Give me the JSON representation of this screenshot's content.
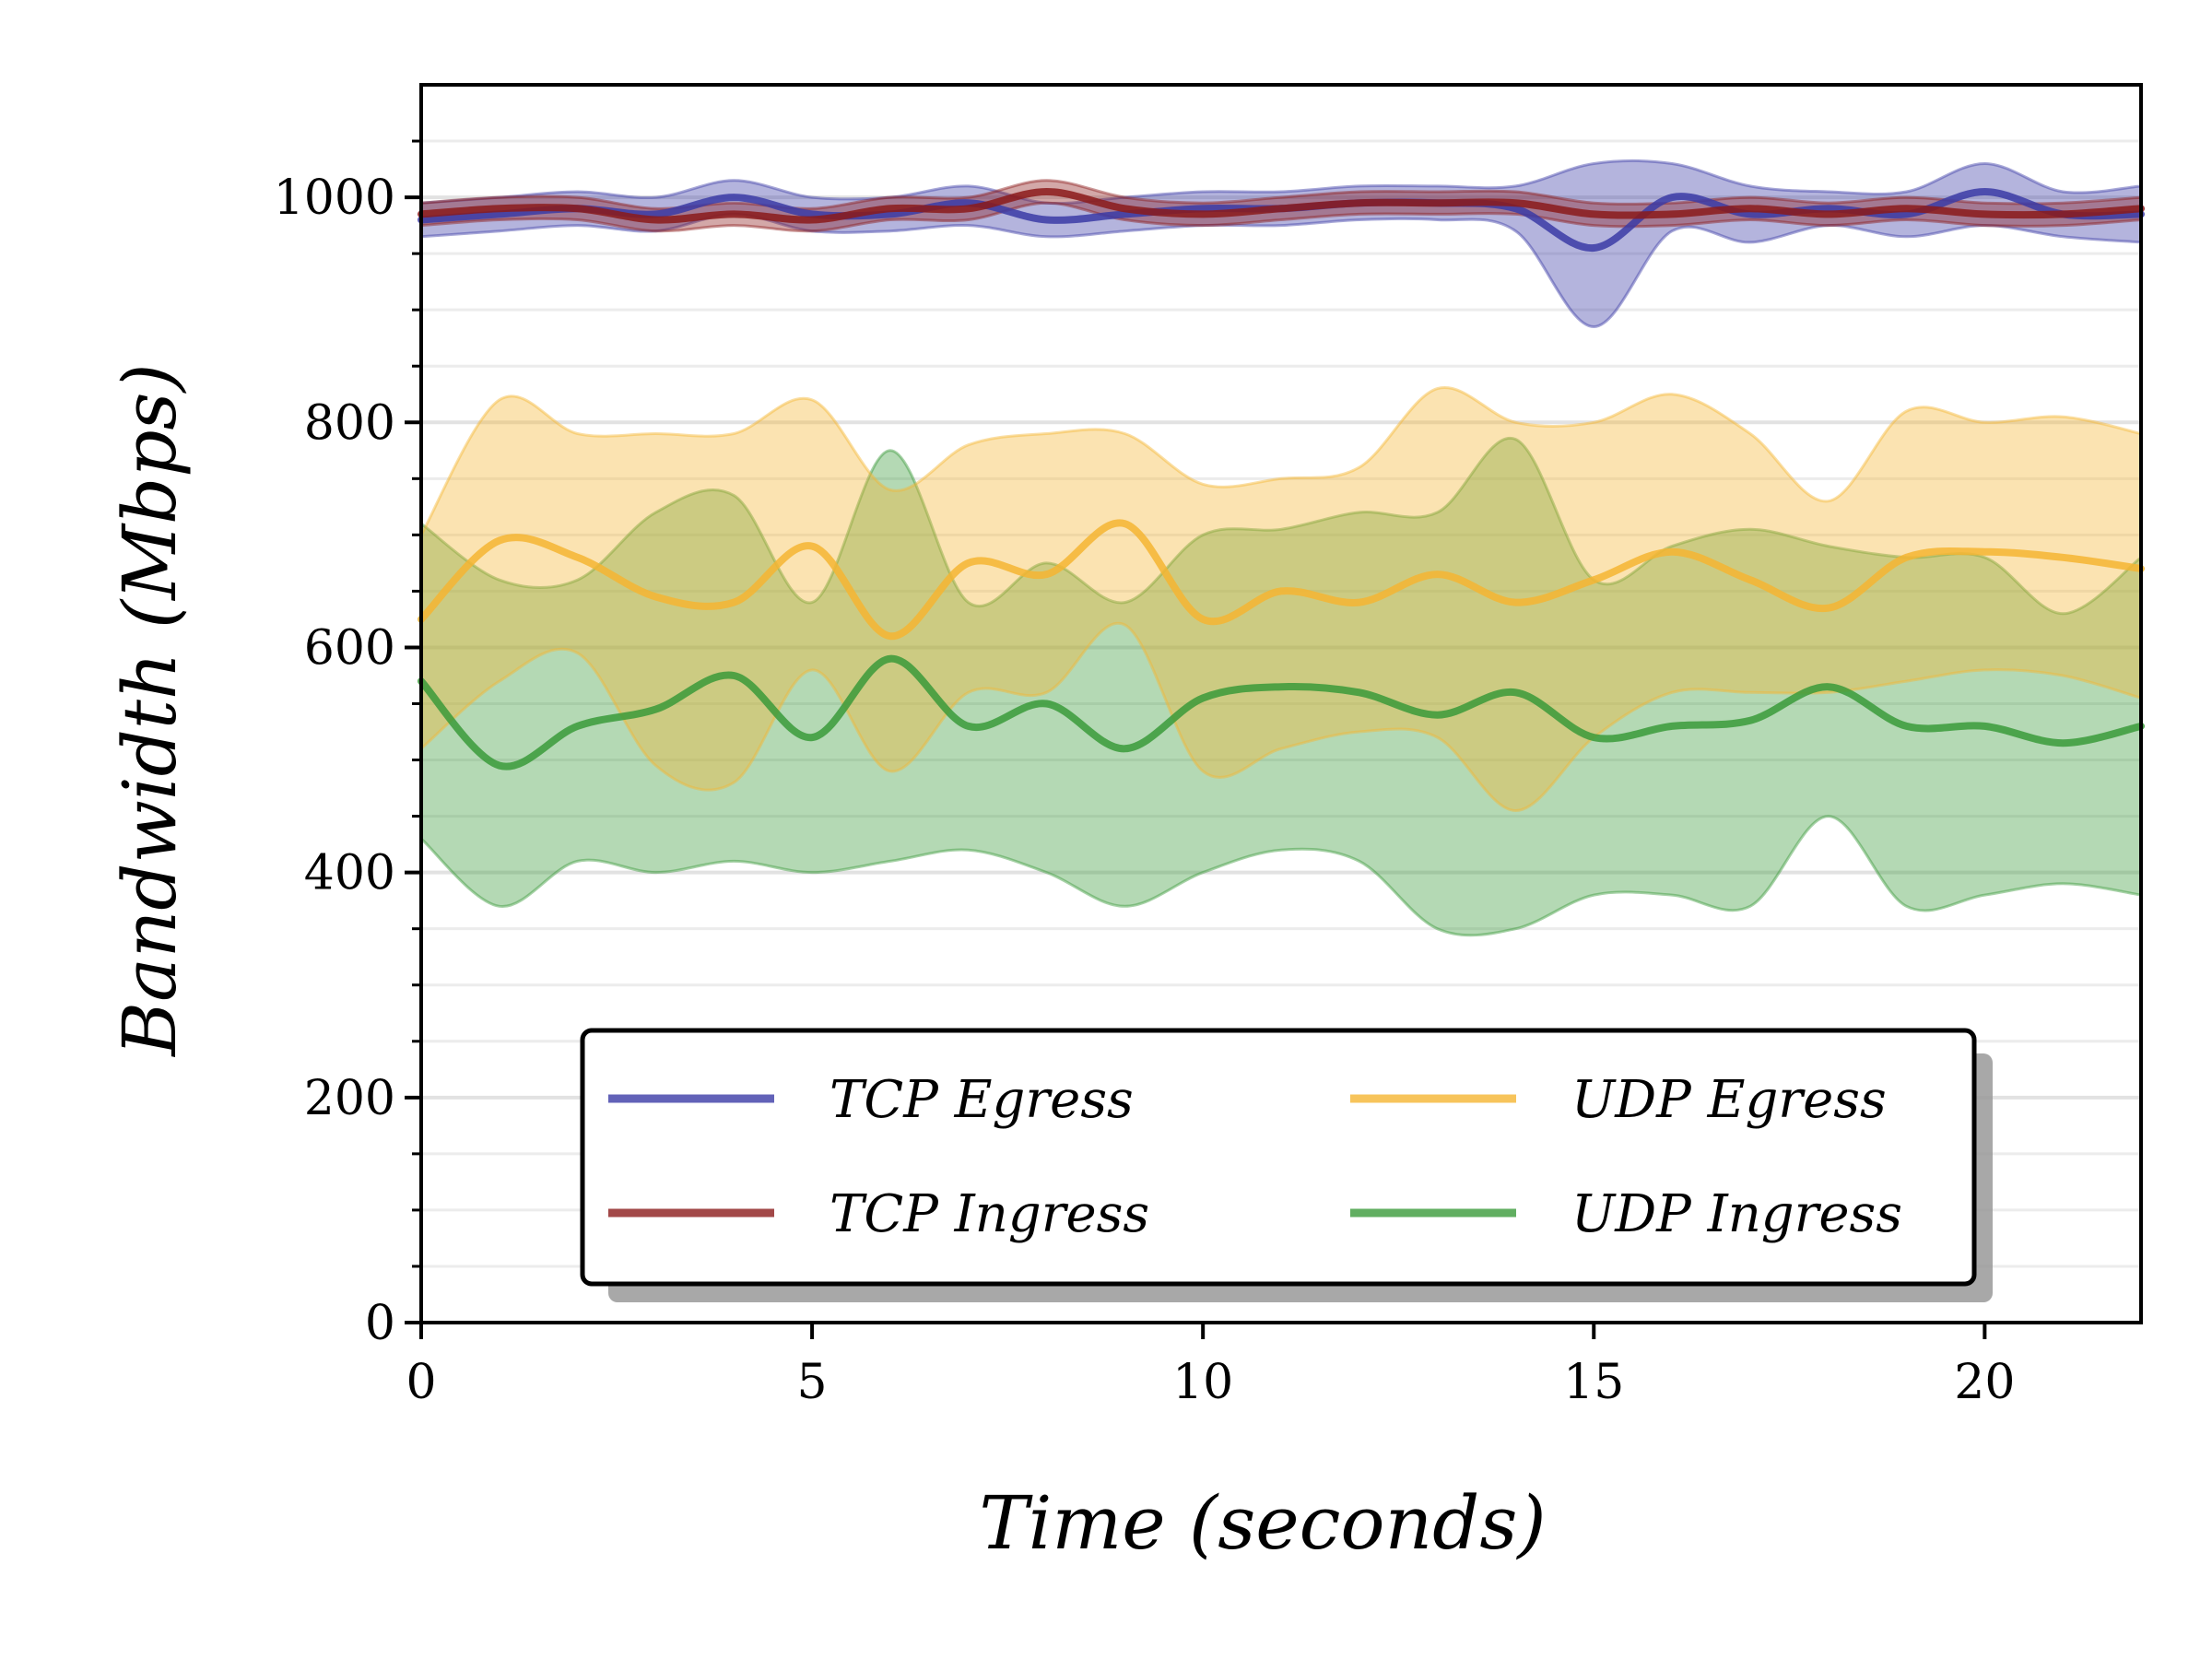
{
  "chart_data": {
    "type": "line",
    "title": "",
    "xlabel": "Time (seconds)",
    "ylabel": "Bandwidth (Mbps)",
    "xlim": [
      0,
      22
    ],
    "ylim": [
      0,
      1100
    ],
    "x_ticks": [
      0,
      5,
      10,
      15,
      20
    ],
    "x_tick_labels": [
      "0",
      "5",
      "10",
      "15",
      "20"
    ],
    "y_ticks": [
      0,
      200,
      400,
      600,
      800,
      1000
    ],
    "y_tick_labels": [
      "0",
      "200",
      "400",
      "600",
      "800",
      "1000"
    ],
    "y_minor_step": 50,
    "grid": "horizontal",
    "legend": {
      "placement": "bottom-center",
      "columns": 2,
      "order": [
        "TCP Egress",
        "TCP Ingress",
        "UDP Egress",
        "UDP Ingress"
      ]
    },
    "x": [
      0,
      1,
      2,
      3,
      4,
      5,
      6,
      7,
      8,
      9,
      10,
      11,
      12,
      13,
      14,
      15,
      16,
      17,
      18,
      19,
      20,
      21,
      22
    ],
    "series": [
      {
        "name": "TCP Egress",
        "color": "#3b3ba6",
        "mean": [
          980,
          985,
          990,
          985,
          1000,
          985,
          985,
          995,
          980,
          985,
          990,
          990,
          995,
          995,
          990,
          955,
          1000,
          985,
          990,
          985,
          1005,
          985,
          985
        ],
        "lower": [
          965,
          970,
          975,
          970,
          985,
          970,
          970,
          975,
          965,
          970,
          975,
          975,
          980,
          980,
          970,
          885,
          970,
          960,
          975,
          965,
          975,
          965,
          960
        ],
        "upper": [
          995,
          1000,
          1005,
          1000,
          1015,
          1000,
          1000,
          1010,
          995,
          1000,
          1005,
          1005,
          1010,
          1010,
          1010,
          1030,
          1030,
          1010,
          1005,
          1005,
          1030,
          1005,
          1010
        ]
      },
      {
        "name": "TCP Ingress",
        "color": "#8b1a1a",
        "mean": [
          985,
          990,
          990,
          980,
          985,
          980,
          990,
          990,
          1005,
          990,
          985,
          990,
          995,
          995,
          995,
          985,
          985,
          990,
          985,
          990,
          985,
          985,
          990
        ],
        "lower": [
          975,
          980,
          980,
          970,
          975,
          970,
          980,
          980,
          995,
          980,
          975,
          980,
          985,
          985,
          985,
          975,
          975,
          980,
          975,
          980,
          975,
          975,
          980
        ],
        "upper": [
          995,
          1000,
          1000,
          990,
          995,
          990,
          1000,
          1000,
          1015,
          1000,
          995,
          1000,
          1005,
          1005,
          1005,
          995,
          995,
          1000,
          995,
          1000,
          995,
          995,
          1000
        ]
      },
      {
        "name": "UDP Egress",
        "color": "#f5b532",
        "mean": [
          625,
          695,
          680,
          645,
          640,
          690,
          610,
          675,
          665,
          710,
          625,
          650,
          640,
          665,
          640,
          660,
          685,
          660,
          635,
          680,
          685,
          680,
          670
        ],
        "lower": [
          510,
          570,
          595,
          495,
          480,
          580,
          490,
          560,
          560,
          620,
          490,
          510,
          525,
          520,
          455,
          520,
          560,
          560,
          560,
          570,
          580,
          575,
          555
        ],
        "upper": [
          700,
          820,
          790,
          790,
          790,
          820,
          740,
          780,
          790,
          790,
          745,
          750,
          760,
          830,
          800,
          800,
          825,
          790,
          730,
          810,
          800,
          805,
          790
        ]
      },
      {
        "name": "UDP Ingress",
        "color": "#3a9a3a",
        "mean": [
          570,
          495,
          530,
          545,
          575,
          520,
          590,
          530,
          550,
          510,
          555,
          565,
          560,
          540,
          560,
          520,
          530,
          535,
          565,
          530,
          530,
          515,
          530
        ],
        "lower": [
          430,
          370,
          410,
          400,
          410,
          400,
          410,
          420,
          400,
          370,
          400,
          420,
          410,
          350,
          350,
          380,
          380,
          370,
          450,
          370,
          380,
          390,
          380
        ],
        "upper": [
          710,
          660,
          660,
          720,
          735,
          640,
          775,
          640,
          675,
          640,
          700,
          705,
          720,
          720,
          785,
          660,
          690,
          705,
          690,
          680,
          680,
          630,
          680
        ]
      }
    ]
  }
}
